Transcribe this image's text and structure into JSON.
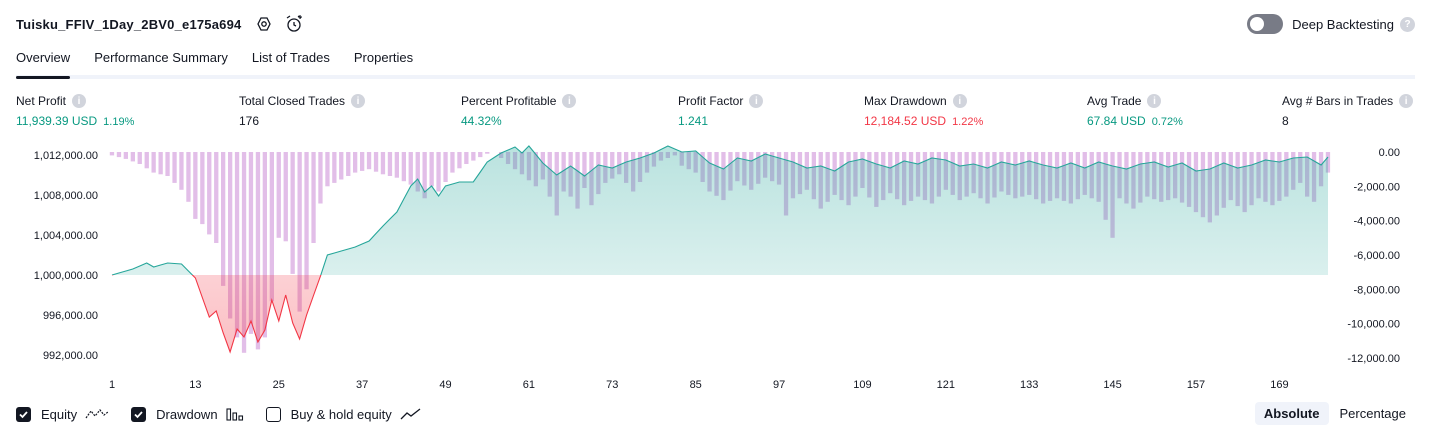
{
  "header": {
    "title": "Tuisku_FFIV_1Day_2BV0_e175a694",
    "settings_icon": "gear-icon",
    "alert_icon": "alarm-add-icon"
  },
  "deep_backtesting": {
    "label": "Deep Backtesting",
    "enabled": false,
    "help": "?"
  },
  "tabs": [
    {
      "label": "Overview",
      "active": true
    },
    {
      "label": "Performance Summary",
      "active": false
    },
    {
      "label": "List of Trades",
      "active": false
    },
    {
      "label": "Properties",
      "active": false
    }
  ],
  "metrics": [
    {
      "label": "Net Profit",
      "value": "11,939.39 USD",
      "pct": "1.19%",
      "color": "green"
    },
    {
      "label": "Total Closed Trades",
      "value": "176",
      "pct": "",
      "color": "dark"
    },
    {
      "label": "Percent Profitable",
      "value": "44.32%",
      "pct": "",
      "color": "green"
    },
    {
      "label": "Profit Factor",
      "value": "1.241",
      "pct": "",
      "color": "green"
    },
    {
      "label": "Max Drawdown",
      "value": "12,184.52 USD",
      "pct": "1.22%",
      "color": "red"
    },
    {
      "label": "Avg Trade",
      "value": "67.84 USD",
      "pct": "0.72%",
      "color": "green"
    },
    {
      "label": "Avg # Bars in Trades",
      "value": "8",
      "pct": "",
      "color": "dark"
    }
  ],
  "legend": {
    "equity": {
      "label": "Equity",
      "checked": true
    },
    "drawdown": {
      "label": "Drawdown",
      "checked": true
    },
    "buy_hold": {
      "label": "Buy & hold equity",
      "checked": false
    }
  },
  "mode": {
    "absolute": "Absolute",
    "percentage": "Percentage",
    "active": "absolute"
  },
  "colors": {
    "equity_up": "#26a69a",
    "equity_down": "#f23645",
    "drawdown": "#ce93d8",
    "accent": "#131722"
  },
  "chart_data": {
    "type": "line",
    "x_ticks": [
      "1",
      "13",
      "25",
      "37",
      "49",
      "61",
      "73",
      "85",
      "97",
      "109",
      "121",
      "133",
      "145",
      "157",
      "169"
    ],
    "left_axis": {
      "ticks": [
        "1,012,000.00",
        "1,008,000.00",
        "1,004,000.00",
        "1,000,000.00",
        "996,000.00",
        "992,000.00"
      ],
      "ylim": [
        990500,
        1013500
      ]
    },
    "right_axis": {
      "ticks": [
        "0.00",
        "-2,000.00",
        "-4,000.00",
        "-6,000.00",
        "-8,000.00",
        "-10,000.00",
        "-12,000.00"
      ],
      "ylim": [
        -12700,
        700
      ]
    },
    "baseline": 1000000,
    "equity_keypoints": [
      [
        1,
        1000000
      ],
      [
        4,
        1000600
      ],
      [
        6,
        1001200
      ],
      [
        7,
        1000800
      ],
      [
        9,
        1001200
      ],
      [
        11,
        1001100
      ],
      [
        13,
        999700
      ],
      [
        15,
        995800
      ],
      [
        16,
        996400
      ],
      [
        17,
        994200
      ],
      [
        18,
        992300
      ],
      [
        19,
        994600
      ],
      [
        20,
        993800
      ],
      [
        21,
        995400
      ],
      [
        22,
        993300
      ],
      [
        23,
        994500
      ],
      [
        24,
        997500
      ],
      [
        25,
        995400
      ],
      [
        26,
        998000
      ],
      [
        27,
        995200
      ],
      [
        28,
        993600
      ],
      [
        29,
        996000
      ],
      [
        31,
        999900
      ],
      [
        32,
        1002000
      ],
      [
        34,
        1002400
      ],
      [
        36,
        1002800
      ],
      [
        38,
        1003400
      ],
      [
        40,
        1004900
      ],
      [
        42,
        1006300
      ],
      [
        44,
        1008900
      ],
      [
        45,
        1009600
      ],
      [
        46,
        1008300
      ],
      [
        47,
        1008900
      ],
      [
        48,
        1007900
      ],
      [
        49,
        1008900
      ],
      [
        51,
        1009300
      ],
      [
        53,
        1009300
      ],
      [
        55,
        1011300
      ],
      [
        57,
        1012200
      ],
      [
        59,
        1012800
      ],
      [
        60,
        1012200
      ],
      [
        61,
        1012900
      ],
      [
        63,
        1011200
      ],
      [
        65,
        1010000
      ],
      [
        67,
        1010900
      ],
      [
        69,
        1009900
      ],
      [
        71,
        1011000
      ],
      [
        73,
        1010700
      ],
      [
        75,
        1011300
      ],
      [
        77,
        1011700
      ],
      [
        79,
        1012200
      ],
      [
        81,
        1012900
      ],
      [
        83,
        1012300
      ],
      [
        85,
        1012400
      ],
      [
        87,
        1011200
      ],
      [
        89,
        1010600
      ],
      [
        91,
        1011700
      ],
      [
        93,
        1011400
      ],
      [
        95,
        1012100
      ],
      [
        97,
        1011700
      ],
      [
        99,
        1011300
      ],
      [
        101,
        1010700
      ],
      [
        103,
        1010900
      ],
      [
        105,
        1010400
      ],
      [
        107,
        1011300
      ],
      [
        109,
        1011600
      ],
      [
        111,
        1011100
      ],
      [
        113,
        1010700
      ],
      [
        115,
        1011400
      ],
      [
        117,
        1011100
      ],
      [
        119,
        1011700
      ],
      [
        121,
        1011500
      ],
      [
        123,
        1010900
      ],
      [
        125,
        1011100
      ],
      [
        127,
        1010700
      ],
      [
        129,
        1011300
      ],
      [
        131,
        1011000
      ],
      [
        133,
        1011400
      ],
      [
        135,
        1011000
      ],
      [
        137,
        1010700
      ],
      [
        139,
        1011200
      ],
      [
        141,
        1010700
      ],
      [
        143,
        1011300
      ],
      [
        145,
        1010900
      ],
      [
        147,
        1010600
      ],
      [
        149,
        1011100
      ],
      [
        151,
        1011300
      ],
      [
        153,
        1010800
      ],
      [
        155,
        1011200
      ],
      [
        157,
        1010400
      ],
      [
        159,
        1010600
      ],
      [
        161,
        1011200
      ],
      [
        163,
        1010700
      ],
      [
        165,
        1011000
      ],
      [
        167,
        1011500
      ],
      [
        169,
        1011300
      ],
      [
        171,
        1011700
      ],
      [
        173,
        1011800
      ],
      [
        174,
        1011400
      ],
      [
        175,
        1011000
      ],
      [
        176,
        1011800
      ]
    ],
    "drawdown_keypoints": [
      [
        1,
        -200
      ],
      [
        3,
        -400
      ],
      [
        5,
        -700
      ],
      [
        7,
        -1200
      ],
      [
        9,
        -1400
      ],
      [
        11,
        -2200
      ],
      [
        12,
        -2900
      ],
      [
        13,
        -3900
      ],
      [
        14,
        -4200
      ],
      [
        15,
        -4800
      ],
      [
        16,
        -5300
      ],
      [
        17,
        -7800
      ],
      [
        18,
        -9700
      ],
      [
        19,
        -10800
      ],
      [
        20,
        -11700
      ],
      [
        21,
        -10600
      ],
      [
        22,
        -11500
      ],
      [
        23,
        -10800
      ],
      [
        24,
        -8700
      ],
      [
        25,
        -5000
      ],
      [
        26,
        -5200
      ],
      [
        27,
        -7100
      ],
      [
        28,
        -9300
      ],
      [
        29,
        -8000
      ],
      [
        30,
        -5300
      ],
      [
        31,
        -3000
      ],
      [
        32,
        -2000
      ],
      [
        34,
        -1600
      ],
      [
        36,
        -1200
      ],
      [
        38,
        -1000
      ],
      [
        40,
        -1300
      ],
      [
        42,
        -1500
      ],
      [
        44,
        -1900
      ],
      [
        46,
        -2700
      ],
      [
        47,
        -2000
      ],
      [
        48,
        -2300
      ],
      [
        50,
        -1200
      ],
      [
        52,
        -700
      ],
      [
        54,
        -300
      ],
      [
        55,
        -100
      ],
      [
        56,
        0
      ],
      [
        58,
        -700
      ],
      [
        60,
        -1300
      ],
      [
        62,
        -2000
      ],
      [
        63,
        -1600
      ],
      [
        64,
        -2600
      ],
      [
        65,
        -3700
      ],
      [
        66,
        -2300
      ],
      [
        67,
        -2600
      ],
      [
        68,
        -3300
      ],
      [
        69,
        -2100
      ],
      [
        70,
        -3100
      ],
      [
        72,
        -1800
      ],
      [
        74,
        -1300
      ],
      [
        76,
        -2300
      ],
      [
        78,
        -1200
      ],
      [
        80,
        -500
      ],
      [
        82,
        -200
      ],
      [
        83,
        -800
      ],
      [
        85,
        -1200
      ],
      [
        87,
        -2300
      ],
      [
        89,
        -2800
      ],
      [
        91,
        -1700
      ],
      [
        93,
        -2200
      ],
      [
        95,
        -1500
      ],
      [
        97,
        -1900
      ],
      [
        98,
        -3700
      ],
      [
        99,
        -2700
      ],
      [
        101,
        -2200
      ],
      [
        103,
        -3300
      ],
      [
        105,
        -2500
      ],
      [
        107,
        -3100
      ],
      [
        109,
        -2100
      ],
      [
        111,
        -3200
      ],
      [
        113,
        -2400
      ],
      [
        115,
        -3100
      ],
      [
        117,
        -2600
      ],
      [
        119,
        -3000
      ],
      [
        121,
        -2200
      ],
      [
        123,
        -2800
      ],
      [
        125,
        -2400
      ],
      [
        127,
        -3000
      ],
      [
        129,
        -2300
      ],
      [
        131,
        -2700
      ],
      [
        133,
        -2500
      ],
      [
        135,
        -3000
      ],
      [
        137,
        -2700
      ],
      [
        139,
        -3000
      ],
      [
        141,
        -2500
      ],
      [
        143,
        -2900
      ],
      [
        145,
        -5000
      ],
      [
        146,
        -2700
      ],
      [
        148,
        -3300
      ],
      [
        150,
        -2600
      ],
      [
        152,
        -2900
      ],
      [
        154,
        -2700
      ],
      [
        156,
        -3200
      ],
      [
        158,
        -3800
      ],
      [
        159,
        -4100
      ],
      [
        160,
        -3700
      ],
      [
        162,
        -2800
      ],
      [
        164,
        -3500
      ],
      [
        166,
        -2700
      ],
      [
        168,
        -3100
      ],
      [
        170,
        -2600
      ],
      [
        172,
        -1800
      ],
      [
        173,
        -2600
      ],
      [
        174,
        -2900
      ],
      [
        175,
        -2000
      ],
      [
        176,
        -1200
      ]
    ]
  }
}
